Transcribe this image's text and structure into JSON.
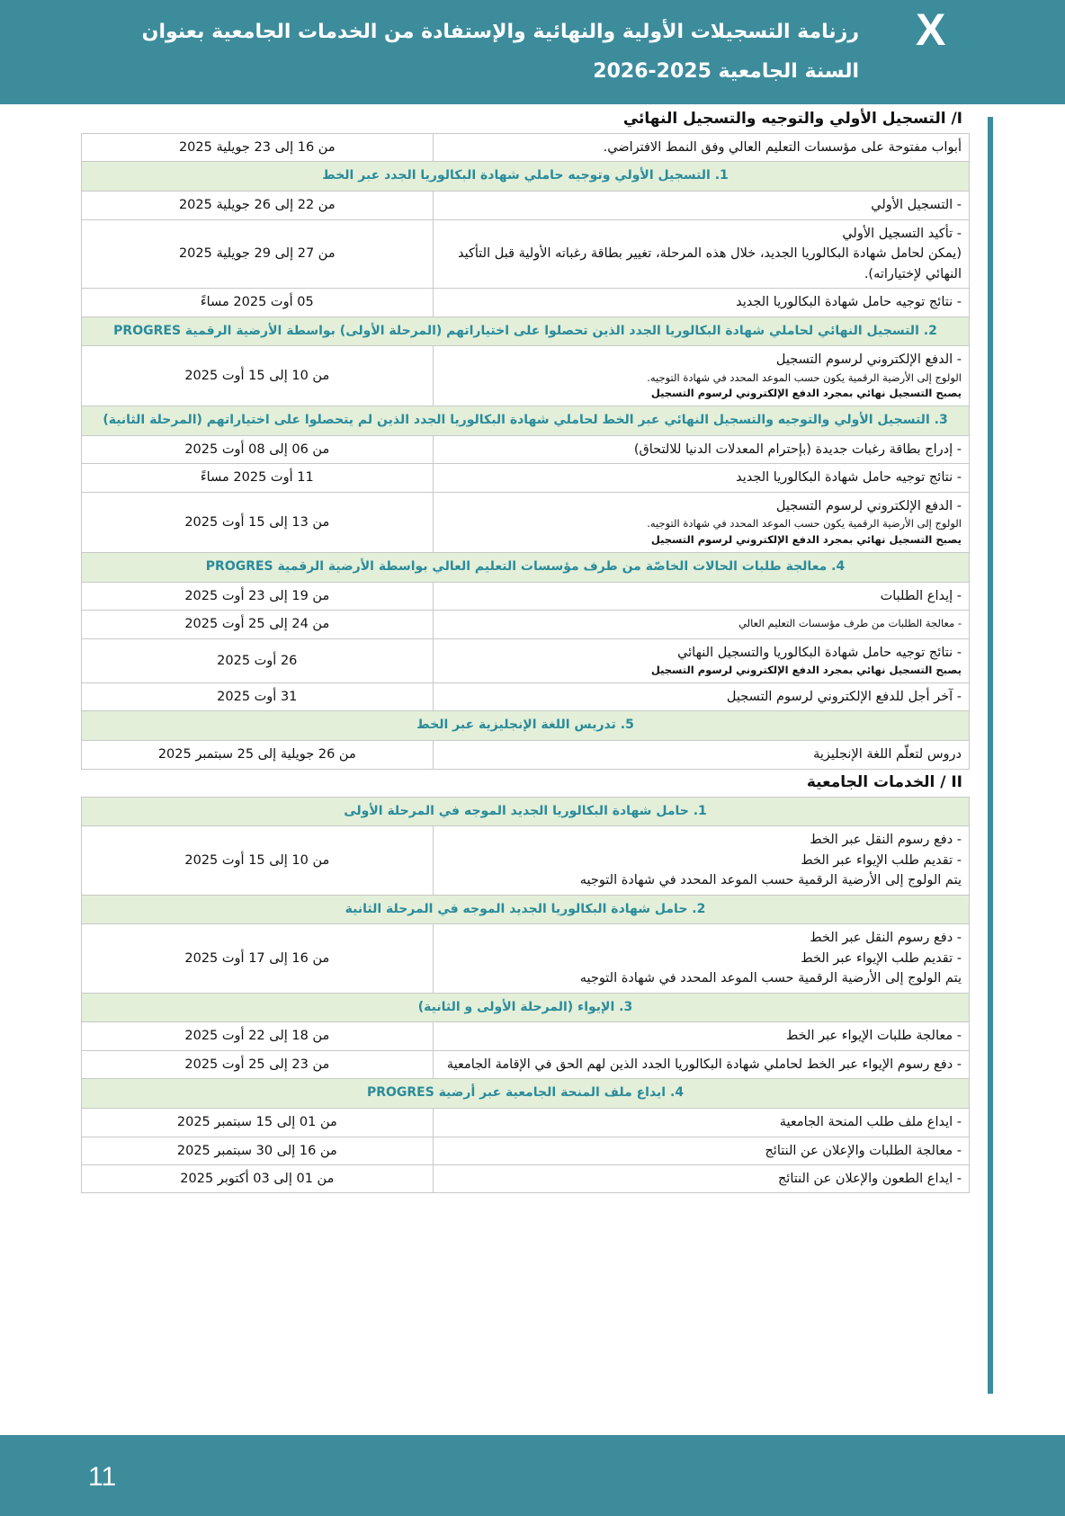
{
  "header": {
    "logo": "X",
    "title": "رزنامة التسجيلات الأولية والنهائية والإستفادة من الخدمات الجامعية بعنوان السنة الجامعية 2025-2026"
  },
  "section1": {
    "title": "I/ التسجيل الأولي والتوجيه والتسجيل النهائي",
    "rows": [
      {
        "lines": [
          "أبواب مفتوحة على مؤسسات التعليم العالي وفق النمط الافتراضي."
        ],
        "date": "من 16 إلى 23 جويلية 2025"
      },
      {
        "heading": "1. التسجيل الأولي وتوجيه حاملي شهادة البكالوريا الجدد عبر الخط"
      },
      {
        "lines": [
          "- التسجيل الأولي"
        ],
        "date": "من 22 إلى 26 جويلية 2025"
      },
      {
        "lines": [
          "- تأكيد التسجيل الأولي",
          "(يمكن لحامل شهادة البكالوريا الجديد، خلال هذه المرحلة، تغيير بطاقة رغباته الأولية قبل التأكيد النهائي لإختياراته)."
        ],
        "date": "من 27 إلى 29 جويلية 2025"
      },
      {
        "lines": [
          "- نتائج توجيه حامل شهادة البكالوريا الجديد"
        ],
        "date": "05 أوت 2025 مساءً"
      },
      {
        "heading": "2. التسجيل النهائي لحاملي شهادة البكالوريا الجدد الذين تحصلوا على اختياراتهم (المرحلة الأولى) بواسطة الأرضية الرقمية PROGRES"
      },
      {
        "lines": [
          "- الدفع الإلكتروني لرسوم التسجيل"
        ],
        "notes": [
          "الولوج إلى الأرضية الرقمية يكون حسب الموعد المحدد في شهادة التوجيه."
        ],
        "bold_notes": [
          "يصبح التسجيل نهائي بمجرد الدفع الإلكتروني لرسوم التسجيل"
        ],
        "date": "من 10 إلى 15 أوت 2025"
      },
      {
        "heading": "3. التسجيل الأولي والتوجيه والتسجيل النهائي عبر الخط لحاملي شهادة البكالوريا الجدد الذين لم يتحصلوا على اختياراتهم (المرحلة الثانية)"
      },
      {
        "lines": [
          "- إدراج بطاقة رغبات جديدة (بإحترام المعدلات الدنيا للالتحاق)"
        ],
        "date": "من 06 إلى 08 أوت 2025"
      },
      {
        "lines": [
          "- نتائج توجيه حامل شهادة البكالوريا الجديد"
        ],
        "date": "11 أوت 2025 مساءً"
      },
      {
        "lines": [
          "- الدفع الإلكتروني لرسوم التسجيل"
        ],
        "notes": [
          "الولوج إلى الأرضية الرقمية يكون حسب الموعد المحدد في شهادة التوجيه."
        ],
        "bold_notes": [
          "يصبح التسجيل نهائي بمجرد الدفع الإلكتروني لرسوم التسجيل"
        ],
        "date": "من 13 إلى 15 أوت 2025"
      },
      {
        "heading": "4. معالجة طلبات الحالات الخاصّة من طرف مؤسسات التعليم العالي بواسطة الأرضية الرقمية PROGRES"
      },
      {
        "lines": [
          "- إيداع الطلبات"
        ],
        "date": "من 19 إلى 23 أوت 2025"
      },
      {
        "notes": [
          "- معالجة الطلبات من طرف مؤسسات التعليم العالي"
        ],
        "date": "من 24 إلى 25 أوت 2025"
      },
      {
        "lines": [
          "- نتائج توجيه حامل شهادة البكالوريا والتسجيل النهائي"
        ],
        "bold_notes": [
          "يصبح التسجيل نهائي بمجرد الدفع الإلكتروني لرسوم التسجيل"
        ],
        "date": "26 أوت 2025"
      },
      {
        "lines": [
          "- آخر أجل للدفع الإلكتروني لرسوم التسجيل"
        ],
        "date": "31 أوت 2025"
      },
      {
        "heading": "5. تدريس اللغة الإنجليزية عبر الخط"
      },
      {
        "lines": [
          "دروس لتعلّم اللغة الإنجليزية"
        ],
        "date": "من 26 جويلية إلى 25 سبتمبر 2025"
      }
    ]
  },
  "section2": {
    "title": "II / الخدمات الجامعية",
    "rows": [
      {
        "heading": "1. حامل شهادة البكالوريا الجديد الموجه في المرحلة الأولى"
      },
      {
        "lines": [
          "- دفع رسوم النقل عبر الخط",
          "- تقديم طلب الإيواء عبر الخط",
          "يتم الولوج إلى الأرضية الرقمية حسب الموعد المحدد في شهادة التوجيه"
        ],
        "date": "من 10 إلى 15 أوت 2025"
      },
      {
        "heading": "2. حامل شهادة البكالوريا الجديد الموجه في المرحلة الثانية"
      },
      {
        "lines": [
          "- دفع رسوم النقل عبر الخط",
          "- تقديم طلب الإيواء عبر الخط",
          "يتم الولوج إلى الأرضية الرقمية حسب الموعد المحدد في شهادة التوجيه"
        ],
        "date": "من 16 إلى 17 أوت 2025"
      },
      {
        "heading": "3. الإيواء (المرحلة الأولى و الثانية)"
      },
      {
        "lines": [
          "- معالجة طلبات الإيواء عبر الخط"
        ],
        "date": "من 18 إلى 22 أوت 2025"
      },
      {
        "lines": [
          "- دفع رسوم الإيواء عبر الخط لحاملي شهادة البكالوريا الجدد الذين لهم الحق في الإقامة الجامعية"
        ],
        "date": "من 23 إلى 25 أوت 2025"
      },
      {
        "heading": "4. ايداع ملف المنحة الجامعية عبر أرضية PROGRES"
      },
      {
        "lines": [
          "- ايداع ملف طلب المنحة الجامعية"
        ],
        "date": "من 01 إلى 15 سبتمبر 2025"
      },
      {
        "lines": [
          "- معالجة الطلبات والإعلان عن النتائج"
        ],
        "date": "من 16 إلى 30 سبتمبر 2025"
      },
      {
        "lines": [
          "- ايداع الطعون والإعلان عن النتائج"
        ],
        "date": "من 01 إلى 03 أكتوبر 2025"
      }
    ]
  },
  "footer": {
    "page": "11"
  }
}
